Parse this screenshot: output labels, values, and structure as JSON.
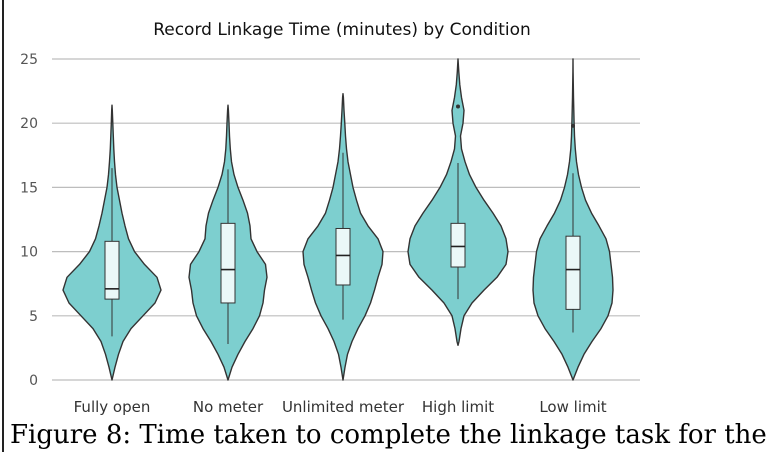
{
  "caption": "Figure 8: Time taken to complete the linkage task for the",
  "chart_data": {
    "type": "violin",
    "title": "Record Linkage Time (minutes) by Condition",
    "xlabel": "",
    "ylabel": "",
    "ylim": [
      0,
      25
    ],
    "yticks": [
      0,
      5,
      10,
      15,
      20,
      25
    ],
    "grid": "horizontal",
    "fill_color": "#7dcfcf",
    "line_color": "#333333",
    "box_fill": "#eaf8f8",
    "categories": [
      "Fully open",
      "No meter",
      "Unlimited meter",
      "High limit",
      "Low limit"
    ],
    "series": [
      {
        "category": "Fully open",
        "box": {
          "q1": 6.3,
          "median": 7.1,
          "q3": 10.8,
          "whisker_low": 3.4,
          "whisker_high": 16.5
        },
        "outliers": [],
        "density": [
          [
            0,
            0
          ],
          [
            1,
            0.06
          ],
          [
            2,
            0.13
          ],
          [
            3,
            0.22
          ],
          [
            4,
            0.38
          ],
          [
            5,
            0.62
          ],
          [
            6,
            0.86
          ],
          [
            7,
            0.98
          ],
          [
            8,
            0.9
          ],
          [
            9,
            0.65
          ],
          [
            10,
            0.45
          ],
          [
            11,
            0.33
          ],
          [
            12,
            0.26
          ],
          [
            13,
            0.2
          ],
          [
            14,
            0.15
          ],
          [
            15,
            0.1
          ],
          [
            16,
            0.07
          ],
          [
            17,
            0.05
          ],
          [
            18,
            0.035
          ],
          [
            19,
            0.025
          ],
          [
            20,
            0.015
          ],
          [
            21,
            0.007
          ],
          [
            21.4,
            0
          ]
        ]
      },
      {
        "category": "No meter",
        "box": {
          "q1": 6.0,
          "median": 8.6,
          "q3": 12.2,
          "whisker_low": 2.8,
          "whisker_high": 16.4
        },
        "outliers": [],
        "density": [
          [
            0,
            0
          ],
          [
            1,
            0.08
          ],
          [
            2,
            0.2
          ],
          [
            3,
            0.34
          ],
          [
            4,
            0.5
          ],
          [
            5,
            0.63
          ],
          [
            6,
            0.7
          ],
          [
            7,
            0.73
          ],
          [
            8,
            0.78
          ],
          [
            9,
            0.75
          ],
          [
            10,
            0.58
          ],
          [
            11,
            0.46
          ],
          [
            12,
            0.44
          ],
          [
            13,
            0.39
          ],
          [
            14,
            0.3
          ],
          [
            15,
            0.2
          ],
          [
            16,
            0.12
          ],
          [
            17,
            0.07
          ],
          [
            18,
            0.045
          ],
          [
            19,
            0.03
          ],
          [
            20,
            0.02
          ],
          [
            21,
            0.008
          ],
          [
            21.4,
            0
          ]
        ]
      },
      {
        "category": "Unlimited meter",
        "box": {
          "q1": 7.4,
          "median": 9.7,
          "q3": 11.8,
          "whisker_low": 4.7,
          "whisker_high": 17.7
        },
        "outliers": [],
        "density": [
          [
            0,
            0
          ],
          [
            1,
            0.04
          ],
          [
            2,
            0.09
          ],
          [
            3,
            0.18
          ],
          [
            4,
            0.3
          ],
          [
            5,
            0.44
          ],
          [
            6,
            0.55
          ],
          [
            7,
            0.63
          ],
          [
            8,
            0.7
          ],
          [
            9,
            0.78
          ],
          [
            10,
            0.8
          ],
          [
            11,
            0.7
          ],
          [
            12,
            0.5
          ],
          [
            13,
            0.35
          ],
          [
            14,
            0.27
          ],
          [
            15,
            0.2
          ],
          [
            16,
            0.15
          ],
          [
            17,
            0.1
          ],
          [
            18,
            0.07
          ],
          [
            19,
            0.05
          ],
          [
            20,
            0.035
          ],
          [
            21,
            0.02
          ],
          [
            22,
            0.008
          ],
          [
            22.3,
            0
          ]
        ]
      },
      {
        "category": "High limit",
        "box": {
          "q1": 8.8,
          "median": 10.4,
          "q3": 12.2,
          "whisker_low": 6.3,
          "whisker_high": 16.9
        },
        "outliers": [
          21.3
        ],
        "density": [
          [
            2.7,
            0
          ],
          [
            3,
            0.02
          ],
          [
            4,
            0.06
          ],
          [
            5,
            0.12
          ],
          [
            6,
            0.28
          ],
          [
            7,
            0.52
          ],
          [
            8,
            0.78
          ],
          [
            9,
            0.96
          ],
          [
            10,
            1.0
          ],
          [
            11,
            0.96
          ],
          [
            12,
            0.86
          ],
          [
            13,
            0.7
          ],
          [
            14,
            0.52
          ],
          [
            15,
            0.36
          ],
          [
            16,
            0.23
          ],
          [
            17,
            0.14
          ],
          [
            18,
            0.07
          ],
          [
            19,
            0.05
          ],
          [
            20,
            0.1
          ],
          [
            21,
            0.12
          ],
          [
            22,
            0.07
          ],
          [
            23,
            0.035
          ],
          [
            24,
            0.015
          ],
          [
            25,
            0
          ]
        ]
      },
      {
        "category": "Low limit",
        "box": {
          "q1": 5.5,
          "median": 8.6,
          "q3": 11.2,
          "whisker_low": 3.7,
          "whisker_high": 16.1
        },
        "outliers": [
          19.8
        ],
        "density": [
          [
            0,
            0
          ],
          [
            1,
            0.1
          ],
          [
            2,
            0.22
          ],
          [
            3,
            0.38
          ],
          [
            4,
            0.56
          ],
          [
            5,
            0.7
          ],
          [
            6,
            0.78
          ],
          [
            7,
            0.8
          ],
          [
            8,
            0.79
          ],
          [
            9,
            0.76
          ],
          [
            10,
            0.73
          ],
          [
            11,
            0.66
          ],
          [
            12,
            0.52
          ],
          [
            13,
            0.37
          ],
          [
            14,
            0.25
          ],
          [
            15,
            0.17
          ],
          [
            16,
            0.11
          ],
          [
            17,
            0.07
          ],
          [
            18,
            0.045
          ],
          [
            19,
            0.03
          ],
          [
            20,
            0.022
          ],
          [
            21,
            0.016
          ],
          [
            22,
            0.01
          ],
          [
            23,
            0.006
          ],
          [
            24,
            0.003
          ],
          [
            25,
            0
          ]
        ]
      }
    ]
  }
}
